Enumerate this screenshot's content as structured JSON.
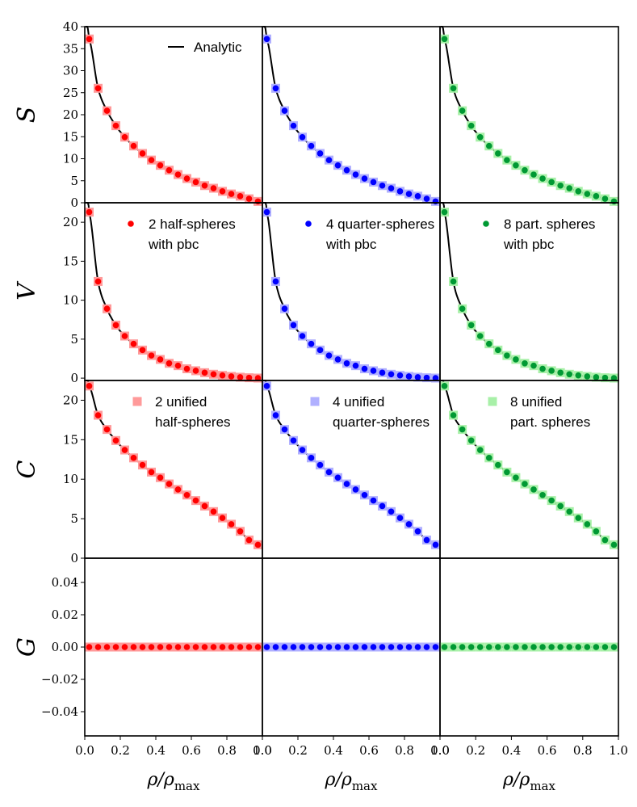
{
  "figure": {
    "columns": [
      {
        "variant": "half",
        "dark": "#ff0000",
        "light": "#ff9a9a"
      },
      {
        "variant": "quarter",
        "dark": "#0000ff",
        "light": "#b0b0ff"
      },
      {
        "variant": "part",
        "dark": "#009933",
        "light": "#a8f0a8"
      }
    ],
    "curve_color": "#000000",
    "axis_color": "#000000"
  },
  "chart_data": {
    "type": "scatter",
    "layout": "4 rows x 3 columns, shared axes",
    "x": [
      0.025,
      0.075,
      0.125,
      0.175,
      0.225,
      0.275,
      0.325,
      0.375,
      0.425,
      0.475,
      0.525,
      0.575,
      0.625,
      0.675,
      0.725,
      0.775,
      0.825,
      0.875,
      0.925,
      0.975
    ],
    "xlim": [
      0.0,
      1.0
    ],
    "xticks": [
      "0.0",
      "0.2",
      "0.4",
      "0.6",
      "0.8",
      "1.0"
    ],
    "xlabel": "ρ/ρmax",
    "xlabel_main": "ρ/ρ",
    "xlabel_sub": "max",
    "rows": [
      {
        "ylabel": "S",
        "ylim": [
          0,
          40
        ],
        "yticks": [
          "0",
          "5",
          "10",
          "15",
          "20",
          "25",
          "30",
          "35",
          "40"
        ],
        "values": [
          37.2,
          26.0,
          20.9,
          17.5,
          14.9,
          12.9,
          11.2,
          9.7,
          8.5,
          7.4,
          6.4,
          5.5,
          4.7,
          3.9,
          3.3,
          2.6,
          2.0,
          1.5,
          0.9,
          0.3
        ],
        "legend": {
          "position": "top-center",
          "text": "Analytic"
        }
      },
      {
        "ylabel": "V",
        "ylim": [
          -0.3,
          22.5
        ],
        "yticks": [
          "0",
          "5",
          "10",
          "15",
          "20"
        ],
        "values": [
          21.3,
          12.4,
          8.9,
          6.8,
          5.4,
          4.4,
          3.6,
          2.9,
          2.4,
          1.9,
          1.6,
          1.2,
          0.95,
          0.7,
          0.5,
          0.35,
          0.22,
          0.12,
          0.05,
          0.01
        ],
        "legend_entries": [
          {
            "line1": "2 half-spheres",
            "line2": "with pbc"
          },
          {
            "line1": "4 quarter-spheres",
            "line2": "with pbc"
          },
          {
            "line1": "8 part. spheres",
            "line2": "with pbc"
          }
        ]
      },
      {
        "ylabel": "C",
        "ylim": [
          0,
          22.5
        ],
        "yticks": [
          "0",
          "5",
          "10",
          "15",
          "20"
        ],
        "values": [
          21.8,
          18.1,
          16.3,
          14.9,
          13.7,
          12.7,
          11.8,
          10.9,
          10.2,
          9.4,
          8.7,
          8.0,
          7.3,
          6.6,
          5.9,
          5.1,
          4.3,
          3.4,
          2.3,
          1.7
        ],
        "legend_entries": [
          {
            "line1": "2 unified",
            "line2": "half-spheres"
          },
          {
            "line1": "4 unified",
            "line2": "quarter-spheres"
          },
          {
            "line1": "8 unified",
            "line2": "part. spheres"
          }
        ]
      },
      {
        "ylabel": "G",
        "ylim": [
          -0.055,
          0.055
        ],
        "yticks": [
          "−0.04",
          "−0.02",
          "0.00",
          "0.02",
          "0.04"
        ],
        "ytick_values": [
          -0.04,
          -0.02,
          0.0,
          0.02,
          0.04
        ],
        "values": [
          0,
          0,
          0,
          0,
          0,
          0,
          0,
          0,
          0,
          0,
          0,
          0,
          0,
          0,
          0,
          0,
          0,
          0,
          0,
          0
        ]
      }
    ]
  }
}
